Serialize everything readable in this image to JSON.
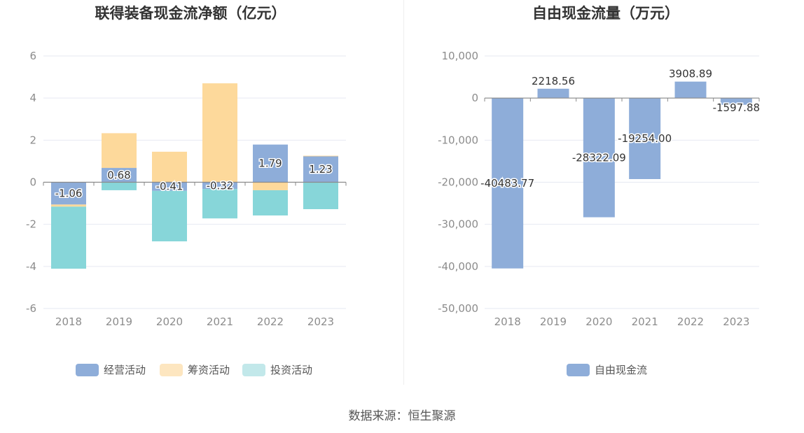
{
  "source_text": "数据来源：恒生聚源",
  "chart_data": [
    {
      "type": "bar",
      "stacked": true,
      "title": "联得装备现金流净额（亿元）",
      "categories": [
        "2018",
        "2019",
        "2020",
        "2021",
        "2022",
        "2023"
      ],
      "ylim": [
        -6,
        6
      ],
      "yticks": [
        "6",
        "4",
        "2",
        "0",
        "-2",
        "-4",
        "-6"
      ],
      "grid": true,
      "legend_position": "bottom",
      "series": [
        {
          "name": "经营活动",
          "color": "#8eadd9",
          "values": [
            -1.06,
            0.68,
            -0.41,
            -0.32,
            1.79,
            1.23
          ]
        },
        {
          "name": "筹资活动",
          "color": "#fdd99b",
          "values": [
            -0.1,
            1.65,
            1.45,
            4.7,
            -0.38,
            0.03
          ]
        },
        {
          "name": "投资活动",
          "color": "#87d6d9",
          "values": [
            -2.95,
            -0.38,
            -2.4,
            -1.4,
            -1.2,
            -1.28
          ]
        }
      ],
      "data_labels": [
        "-1.06",
        "0.68",
        "-0.41",
        "-0.32",
        "1.79",
        "1.23"
      ],
      "legend_colors": [
        "#8eadd9",
        "#fde6c0",
        "#c2e8ea"
      ]
    },
    {
      "type": "bar",
      "title": "自由现金流量（万元）",
      "categories": [
        "2018",
        "2019",
        "2020",
        "2021",
        "2022",
        "2023"
      ],
      "ylim": [
        -50000,
        10000
      ],
      "yticks": [
        "10,000",
        "0",
        "-10,000",
        "-20,000",
        "-30,000",
        "-40,000",
        "-50,000"
      ],
      "grid": true,
      "legend_position": "bottom",
      "series": [
        {
          "name": "自由现金流",
          "color": "#8eadd9",
          "values": [
            -40483.77,
            2218.56,
            -28322.09,
            -19254.0,
            3908.89,
            -1597.88
          ]
        }
      ],
      "data_labels": [
        "-40483.77",
        "2218.56",
        "-28322.09",
        "-19254.00",
        "3908.89",
        "-1597.88"
      ]
    }
  ]
}
